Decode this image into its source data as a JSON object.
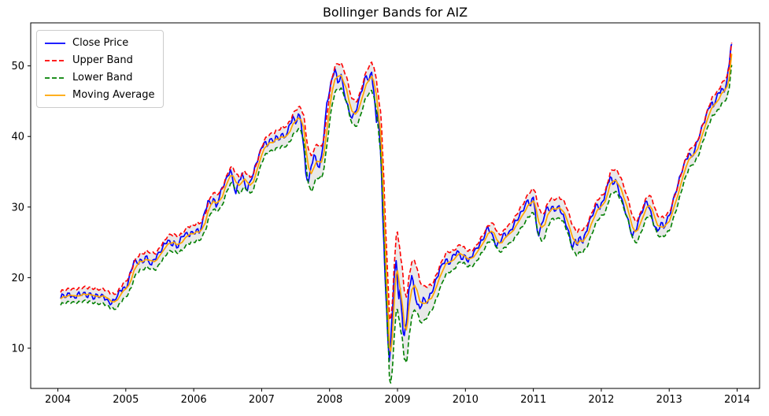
{
  "chart_data": {
    "type": "line",
    "title": "Bollinger Bands for AIZ",
    "xlabel": "",
    "ylabel": "",
    "grid": false,
    "legend_position": "upper left",
    "x_ticks": [
      "2004",
      "2005",
      "2006",
      "2007",
      "2008",
      "2009",
      "2010",
      "2011",
      "2012",
      "2013",
      "2014"
    ],
    "y_ticks": [
      10,
      20,
      30,
      40,
      50
    ],
    "xlim": [
      2003.6,
      2014.33
    ],
    "ylim": [
      4.3,
      56.1
    ],
    "colors": {
      "axis": "#000000",
      "band_fill": "rgba(128,128,128,0.18)",
      "background": "#ffffff"
    },
    "noise": {
      "close": 0.38,
      "band": 0.22
    },
    "series": [
      {
        "name": "Close Price",
        "color": "#0000ff",
        "style": "solid",
        "width": 1.7
      },
      {
        "name": "Upper Band",
        "color": "#ff0000",
        "style": "dashed",
        "width": 1.6
      },
      {
        "name": "Lower Band",
        "color": "#008000",
        "style": "dashed",
        "width": 1.6
      },
      {
        "name": "Moving Average",
        "color": "#ffa500",
        "style": "solid",
        "width": 1.7
      }
    ],
    "ma_window": 3,
    "derivation_note": "Upper Band = Moving Average + halfwidth(x); Lower Band = Moving Average - halfwidth(x); Moving Average = trailing mean of Close over ma_window points.",
    "band_halfwidth_points": [
      [
        2004.0,
        0.9
      ],
      [
        2005.0,
        1.1
      ],
      [
        2006.0,
        1.2
      ],
      [
        2007.0,
        1.1
      ],
      [
        2007.6,
        1.6
      ],
      [
        2007.7,
        2.6
      ],
      [
        2007.9,
        2.2
      ],
      [
        2008.1,
        1.8
      ],
      [
        2008.5,
        1.7
      ],
      [
        2008.7,
        2.2
      ],
      [
        2008.8,
        3.5
      ],
      [
        2008.9,
        4.5
      ],
      [
        2009.0,
        5.5
      ],
      [
        2009.15,
        4.5
      ],
      [
        2009.3,
        3.0
      ],
      [
        2009.5,
        1.8
      ],
      [
        2010.0,
        1.1
      ],
      [
        2010.5,
        1.2
      ],
      [
        2011.0,
        1.7
      ],
      [
        2011.1,
        2.0
      ],
      [
        2011.3,
        1.4
      ],
      [
        2011.6,
        1.7
      ],
      [
        2012.0,
        1.4
      ],
      [
        2012.13,
        1.6
      ],
      [
        2012.5,
        1.5
      ],
      [
        2013.0,
        1.3
      ],
      [
        2013.5,
        1.2
      ],
      [
        2013.95,
        1.6
      ]
    ],
    "close_points": [
      [
        2004.04,
        17.0
      ],
      [
        2004.08,
        17.6
      ],
      [
        2004.12,
        17.2
      ],
      [
        2004.17,
        17.8
      ],
      [
        2004.21,
        17.4
      ],
      [
        2004.25,
        17.1
      ],
      [
        2004.29,
        17.7
      ],
      [
        2004.33,
        17.5
      ],
      [
        2004.38,
        17.9
      ],
      [
        2004.42,
        17.3
      ],
      [
        2004.46,
        17.8
      ],
      [
        2004.5,
        17.5
      ],
      [
        2004.54,
        17.0
      ],
      [
        2004.58,
        17.6
      ],
      [
        2004.62,
        17.2
      ],
      [
        2004.67,
        17.5
      ],
      [
        2004.71,
        16.9
      ],
      [
        2004.75,
        16.6
      ],
      [
        2004.79,
        16.3
      ],
      [
        2004.83,
        16.8
      ],
      [
        2004.88,
        17.5
      ],
      [
        2004.92,
        18.2
      ],
      [
        2004.96,
        18.6
      ],
      [
        2005.0,
        18.4
      ],
      [
        2005.04,
        19.6
      ],
      [
        2005.08,
        21.0
      ],
      [
        2005.12,
        22.4
      ],
      [
        2005.17,
        22.0
      ],
      [
        2005.21,
        22.6
      ],
      [
        2005.25,
        22.1
      ],
      [
        2005.29,
        23.0
      ],
      [
        2005.33,
        22.4
      ],
      [
        2005.38,
        21.8
      ],
      [
        2005.42,
        22.6
      ],
      [
        2005.46,
        23.2
      ],
      [
        2005.5,
        23.6
      ],
      [
        2005.54,
        24.2
      ],
      [
        2005.58,
        24.8
      ],
      [
        2005.62,
        25.3
      ],
      [
        2005.67,
        24.6
      ],
      [
        2005.71,
        25.2
      ],
      [
        2005.75,
        24.2
      ],
      [
        2005.79,
        25.0
      ],
      [
        2005.83,
        25.8
      ],
      [
        2005.88,
        26.3
      ],
      [
        2005.92,
        25.9
      ],
      [
        2005.96,
        26.5
      ],
      [
        2006.0,
        26.2
      ],
      [
        2006.04,
        26.8
      ],
      [
        2006.08,
        26.3
      ],
      [
        2006.12,
        27.5
      ],
      [
        2006.17,
        29.5
      ],
      [
        2006.21,
        30.9
      ],
      [
        2006.25,
        30.4
      ],
      [
        2006.29,
        31.2
      ],
      [
        2006.33,
        30.0
      ],
      [
        2006.38,
        31.5
      ],
      [
        2006.42,
        32.8
      ],
      [
        2006.46,
        33.6
      ],
      [
        2006.5,
        34.4
      ],
      [
        2006.54,
        35.3
      ],
      [
        2006.58,
        33.5
      ],
      [
        2006.62,
        31.9
      ],
      [
        2006.67,
        33.8
      ],
      [
        2006.71,
        34.8
      ],
      [
        2006.75,
        33.4
      ],
      [
        2006.79,
        32.3
      ],
      [
        2006.83,
        33.6
      ],
      [
        2006.88,
        34.8
      ],
      [
        2006.92,
        36.2
      ],
      [
        2006.96,
        37.4
      ],
      [
        2007.0,
        38.4
      ],
      [
        2007.04,
        39.2
      ],
      [
        2007.08,
        38.6
      ],
      [
        2007.12,
        39.6
      ],
      [
        2007.17,
        39.2
      ],
      [
        2007.21,
        40.1
      ],
      [
        2007.25,
        39.5
      ],
      [
        2007.29,
        40.3
      ],
      [
        2007.33,
        39.8
      ],
      [
        2007.38,
        40.6
      ],
      [
        2007.42,
        41.8
      ],
      [
        2007.46,
        42.9
      ],
      [
        2007.5,
        41.8
      ],
      [
        2007.54,
        43.2
      ],
      [
        2007.58,
        42.0
      ],
      [
        2007.62,
        38.5
      ],
      [
        2007.65,
        34.8
      ],
      [
        2007.69,
        33.6
      ],
      [
        2007.73,
        35.8
      ],
      [
        2007.77,
        37.4
      ],
      [
        2007.81,
        36.3
      ],
      [
        2007.85,
        35.6
      ],
      [
        2007.88,
        37.2
      ],
      [
        2007.92,
        40.5
      ],
      [
        2007.96,
        44.8
      ],
      [
        2008.0,
        46.4
      ],
      [
        2008.04,
        48.3
      ],
      [
        2008.08,
        49.6
      ],
      [
        2008.12,
        47.6
      ],
      [
        2008.17,
        48.8
      ],
      [
        2008.21,
        46.5
      ],
      [
        2008.25,
        44.8
      ],
      [
        2008.29,
        43.4
      ],
      [
        2008.33,
        42.6
      ],
      [
        2008.38,
        43.5
      ],
      [
        2008.42,
        44.8
      ],
      [
        2008.46,
        46.2
      ],
      [
        2008.5,
        47.4
      ],
      [
        2008.54,
        48.6
      ],
      [
        2008.58,
        47.9
      ],
      [
        2008.62,
        49.1
      ],
      [
        2008.65,
        46.5
      ],
      [
        2008.69,
        42.0
      ],
      [
        2008.71,
        43.5
      ],
      [
        2008.73,
        41.0
      ],
      [
        2008.75,
        38.0
      ],
      [
        2008.77,
        33.0
      ],
      [
        2008.79,
        27.0
      ],
      [
        2008.81,
        22.0
      ],
      [
        2008.83,
        17.5
      ],
      [
        2008.85,
        13.0
      ],
      [
        2008.87,
        9.5
      ],
      [
        2008.88,
        8.2
      ],
      [
        2008.9,
        11.0
      ],
      [
        2008.92,
        14.5
      ],
      [
        2008.94,
        18.0
      ],
      [
        2008.96,
        21.0
      ],
      [
        2008.98,
        22.4
      ],
      [
        2009.0,
        19.5
      ],
      [
        2009.02,
        17.0
      ],
      [
        2009.04,
        18.5
      ],
      [
        2009.06,
        15.5
      ],
      [
        2009.08,
        12.5
      ],
      [
        2009.1,
        11.8
      ],
      [
        2009.13,
        13.5
      ],
      [
        2009.15,
        16.0
      ],
      [
        2009.17,
        18.5
      ],
      [
        2009.21,
        20.3
      ],
      [
        2009.25,
        18.0
      ],
      [
        2009.29,
        16.2
      ],
      [
        2009.33,
        15.6
      ],
      [
        2009.38,
        17.2
      ],
      [
        2009.42,
        16.4
      ],
      [
        2009.46,
        17.0
      ],
      [
        2009.5,
        17.8
      ],
      [
        2009.54,
        18.8
      ],
      [
        2009.58,
        20.0
      ],
      [
        2009.62,
        21.2
      ],
      [
        2009.67,
        22.0
      ],
      [
        2009.71,
        22.6
      ],
      [
        2009.75,
        21.9
      ],
      [
        2009.79,
        22.4
      ],
      [
        2009.83,
        23.3
      ],
      [
        2009.88,
        23.8
      ],
      [
        2009.92,
        23.2
      ],
      [
        2009.96,
        22.6
      ],
      [
        2010.0,
        23.1
      ],
      [
        2010.04,
        22.2
      ],
      [
        2010.08,
        22.9
      ],
      [
        2010.12,
        23.6
      ],
      [
        2010.17,
        24.2
      ],
      [
        2010.21,
        24.7
      ],
      [
        2010.25,
        25.3
      ],
      [
        2010.29,
        26.1
      ],
      [
        2010.33,
        27.2
      ],
      [
        2010.38,
        26.4
      ],
      [
        2010.42,
        25.4
      ],
      [
        2010.46,
        24.4
      ],
      [
        2010.5,
        24.9
      ],
      [
        2010.54,
        25.6
      ],
      [
        2010.58,
        26.3
      ],
      [
        2010.62,
        26.0
      ],
      [
        2010.67,
        26.8
      ],
      [
        2010.71,
        27.4
      ],
      [
        2010.75,
        28.1
      ],
      [
        2010.79,
        28.6
      ],
      [
        2010.83,
        29.4
      ],
      [
        2010.88,
        30.3
      ],
      [
        2010.92,
        31.0
      ],
      [
        2010.96,
        30.2
      ],
      [
        2011.0,
        31.4
      ],
      [
        2011.02,
        30.0
      ],
      [
        2011.04,
        27.8
      ],
      [
        2011.08,
        25.9
      ],
      [
        2011.12,
        27.6
      ],
      [
        2011.17,
        29.0
      ],
      [
        2011.21,
        30.0
      ],
      [
        2011.25,
        29.4
      ],
      [
        2011.29,
        30.1
      ],
      [
        2011.33,
        29.5
      ],
      [
        2011.38,
        30.2
      ],
      [
        2011.42,
        29.0
      ],
      [
        2011.46,
        28.2
      ],
      [
        2011.5,
        27.0
      ],
      [
        2011.54,
        25.6
      ],
      [
        2011.58,
        24.3
      ],
      [
        2011.62,
        25.4
      ],
      [
        2011.65,
        24.6
      ],
      [
        2011.69,
        25.8
      ],
      [
        2011.73,
        24.9
      ],
      [
        2011.77,
        26.4
      ],
      [
        2011.81,
        27.6
      ],
      [
        2011.85,
        28.6
      ],
      [
        2011.9,
        29.6
      ],
      [
        2011.94,
        30.4
      ],
      [
        2011.98,
        29.7
      ],
      [
        2012.02,
        30.8
      ],
      [
        2012.06,
        32.0
      ],
      [
        2012.1,
        33.4
      ],
      [
        2012.13,
        34.3
      ],
      [
        2012.17,
        33.2
      ],
      [
        2012.21,
        33.9
      ],
      [
        2012.25,
        32.6
      ],
      [
        2012.29,
        31.4
      ],
      [
        2012.33,
        30.2
      ],
      [
        2012.38,
        28.6
      ],
      [
        2012.42,
        27.0
      ],
      [
        2012.46,
        25.9
      ],
      [
        2012.5,
        26.6
      ],
      [
        2012.54,
        27.8
      ],
      [
        2012.58,
        29.0
      ],
      [
        2012.63,
        30.1
      ],
      [
        2012.67,
        30.8
      ],
      [
        2012.71,
        29.8
      ],
      [
        2012.75,
        28.4
      ],
      [
        2012.79,
        27.2
      ],
      [
        2012.83,
        26.6
      ],
      [
        2012.88,
        27.8
      ],
      [
        2012.92,
        27.0
      ],
      [
        2012.96,
        28.0
      ],
      [
        2013.0,
        28.8
      ],
      [
        2013.04,
        30.2
      ],
      [
        2013.08,
        31.8
      ],
      [
        2013.13,
        33.2
      ],
      [
        2013.17,
        34.6
      ],
      [
        2013.21,
        35.8
      ],
      [
        2013.25,
        36.8
      ],
      [
        2013.29,
        37.6
      ],
      [
        2013.33,
        37.1
      ],
      [
        2013.38,
        38.2
      ],
      [
        2013.42,
        39.4
      ],
      [
        2013.46,
        40.6
      ],
      [
        2013.5,
        41.8
      ],
      [
        2013.54,
        42.9
      ],
      [
        2013.58,
        44.0
      ],
      [
        2013.62,
        44.8
      ],
      [
        2013.65,
        44.2
      ],
      [
        2013.69,
        45.3
      ],
      [
        2013.73,
        46.2
      ],
      [
        2013.77,
        46.8
      ],
      [
        2013.81,
        46.3
      ],
      [
        2013.85,
        48.0
      ],
      [
        2013.88,
        50.0
      ],
      [
        2013.9,
        52.0
      ],
      [
        2013.92,
        53.1
      ]
    ]
  }
}
